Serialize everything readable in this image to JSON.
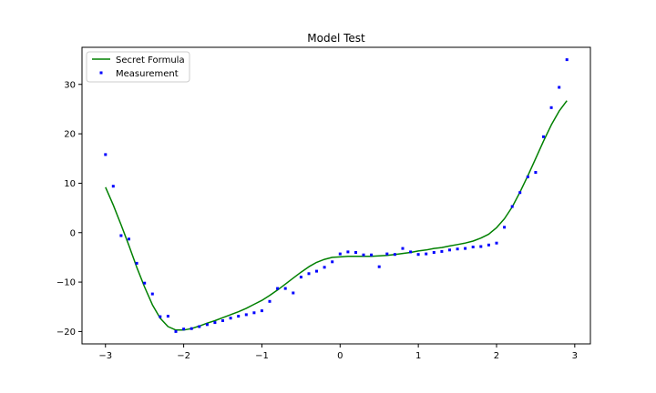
{
  "chart_data": {
    "type": "line",
    "title": "Model Test",
    "xlabel": "",
    "ylabel": "",
    "xlim": [
      -3.3,
      3.2
    ],
    "ylim": [
      -22.5,
      37.5
    ],
    "xticks": [
      -3,
      -2,
      -1,
      0,
      1,
      2,
      3
    ],
    "xtick_labels": [
      "−3",
      "−2",
      "−1",
      "0",
      "1",
      "2",
      "3"
    ],
    "yticks": [
      -20,
      -10,
      0,
      10,
      20,
      30
    ],
    "ytick_labels": [
      "−20",
      "−10",
      "0",
      "10",
      "20",
      "30"
    ],
    "grid": false,
    "legend_position": "top-left",
    "series": [
      {
        "name": "Secret Formula",
        "kind": "line",
        "color": "#008000",
        "x": [
          -3.0,
          -2.9,
          -2.8,
          -2.7,
          -2.6,
          -2.5,
          -2.4,
          -2.3,
          -2.2,
          -2.1,
          -2.0,
          -1.9,
          -1.8,
          -1.7,
          -1.6,
          -1.5,
          -1.4,
          -1.3,
          -1.2,
          -1.1,
          -1.0,
          -0.9,
          -0.8,
          -0.7,
          -0.6,
          -0.5,
          -0.4,
          -0.3,
          -0.2,
          -0.1,
          0.0,
          0.1,
          0.2,
          0.3,
          0.4,
          0.5,
          0.6,
          0.7,
          0.8,
          0.9,
          1.0,
          1.1,
          1.2,
          1.3,
          1.4,
          1.5,
          1.6,
          1.7,
          1.8,
          1.9,
          2.0,
          2.1,
          2.2,
          2.3,
          2.4,
          2.5,
          2.6,
          2.7,
          2.8,
          2.9
        ],
        "y": [
          9.2,
          5.6,
          1.6,
          -2.6,
          -7.0,
          -11.0,
          -14.6,
          -17.3,
          -19.0,
          -19.7,
          -19.7,
          -19.4,
          -18.9,
          -18.3,
          -17.8,
          -17.2,
          -16.6,
          -16.0,
          -15.3,
          -14.5,
          -13.7,
          -12.7,
          -11.6,
          -10.4,
          -9.2,
          -8.0,
          -6.9,
          -6.0,
          -5.4,
          -5.0,
          -4.9,
          -4.8,
          -4.8,
          -4.8,
          -4.8,
          -4.7,
          -4.6,
          -4.4,
          -4.2,
          -4.0,
          -3.7,
          -3.5,
          -3.2,
          -3.0,
          -2.7,
          -2.4,
          -2.1,
          -1.7,
          -1.1,
          -0.3,
          1.0,
          2.8,
          5.2,
          8.2,
          11.5,
          15.0,
          18.5,
          21.8,
          24.6,
          26.7
        ]
      },
      {
        "name": "Measurement",
        "kind": "scatter",
        "color": "#0000ff",
        "x": [
          -3.0,
          -2.9,
          -2.8,
          -2.7,
          -2.6,
          -2.5,
          -2.4,
          -2.3,
          -2.2,
          -2.1,
          -2.0,
          -1.9,
          -1.8,
          -1.7,
          -1.6,
          -1.5,
          -1.4,
          -1.3,
          -1.2,
          -1.1,
          -1.0,
          -0.9,
          -0.8,
          -0.7,
          -0.6,
          -0.5,
          -0.4,
          -0.3,
          -0.2,
          -0.1,
          0.0,
          0.1,
          0.2,
          0.3,
          0.4,
          0.5,
          0.6,
          0.7,
          0.8,
          0.9,
          1.0,
          1.1,
          1.2,
          1.3,
          1.4,
          1.5,
          1.6,
          1.7,
          1.8,
          1.9,
          2.0,
          2.1,
          2.2,
          2.3,
          2.4,
          2.5,
          2.6,
          2.7,
          2.8,
          2.9
        ],
        "y": [
          15.8,
          9.4,
          -0.6,
          -1.3,
          -6.2,
          -10.2,
          -12.4,
          -17.0,
          -16.9,
          -20.0,
          -19.5,
          -19.4,
          -19.0,
          -18.6,
          -18.2,
          -17.8,
          -17.3,
          -16.9,
          -16.6,
          -16.2,
          -15.8,
          -13.9,
          -11.3,
          -11.3,
          -12.2,
          -9.0,
          -8.3,
          -7.8,
          -7.0,
          -5.9,
          -4.3,
          -3.9,
          -4.0,
          -4.5,
          -4.5,
          -6.9,
          -4.3,
          -4.4,
          -3.2,
          -3.9,
          -4.4,
          -4.3,
          -4.0,
          -3.8,
          -3.5,
          -3.3,
          -3.2,
          -2.9,
          -2.8,
          -2.5,
          -2.1,
          1.1,
          5.3,
          8.1,
          11.3,
          12.2,
          19.4,
          25.3,
          29.4,
          35.0
        ]
      }
    ]
  }
}
